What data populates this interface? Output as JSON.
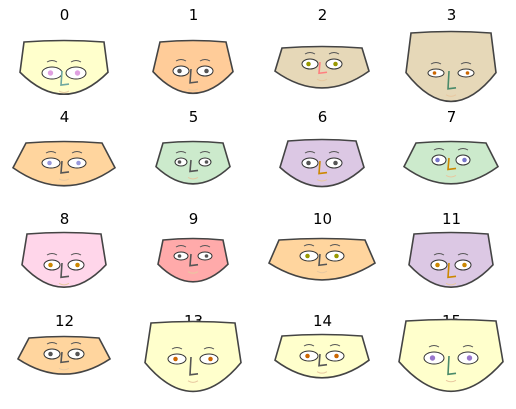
{
  "faces": [
    {
      "label": "0",
      "color": "#ffffcc",
      "iris": "#e0a0e0",
      "nose": "#6fa8a0"
    },
    {
      "label": "1",
      "color": "#ffcc99",
      "iris": "#555555",
      "nose": "#555555"
    },
    {
      "label": "2",
      "color": "#e6d8b8",
      "iris": "#999900",
      "nose": "#ff7f7f"
    },
    {
      "label": "3",
      "color": "#e6d8b8",
      "iris": "#cc6600",
      "nose": "#4a8a6a"
    },
    {
      "label": "4",
      "color": "#ffd59e",
      "iris": "#9999dd",
      "nose": "#555555"
    },
    {
      "label": "5",
      "color": "#cceacc",
      "iris": "#555555",
      "nose": "#555555"
    },
    {
      "label": "6",
      "color": "#dcc8e4",
      "iris": "#555555",
      "nose": "#cc8800"
    },
    {
      "label": "7",
      "color": "#cceacc",
      "iris": "#7777cc",
      "nose": "#cc8800"
    },
    {
      "label": "8",
      "color": "#ffd6ea",
      "iris": "#cc8800",
      "nose": "#555555"
    },
    {
      "label": "9",
      "color": "#ffaaaa",
      "iris": "#555555",
      "nose": "#555555"
    },
    {
      "label": "10",
      "color": "#ffd59e",
      "iris": "#999900",
      "nose": "#555555"
    },
    {
      "label": "11",
      "color": "#dcc8e4",
      "iris": "#cc8800",
      "nose": "#cc8800"
    },
    {
      "label": "12",
      "color": "#ffd59e",
      "iris": "#555555",
      "nose": "#555555"
    },
    {
      "label": "13",
      "color": "#ffffcc",
      "iris": "#cc6600",
      "nose": "#555555"
    },
    {
      "label": "14",
      "color": "#ffffcc",
      "iris": "#cc6600",
      "nose": "#555555"
    },
    {
      "label": "15",
      "color": "#ffffcc",
      "iris": "#9977cc",
      "nose": "#4a8a6a"
    }
  ]
}
